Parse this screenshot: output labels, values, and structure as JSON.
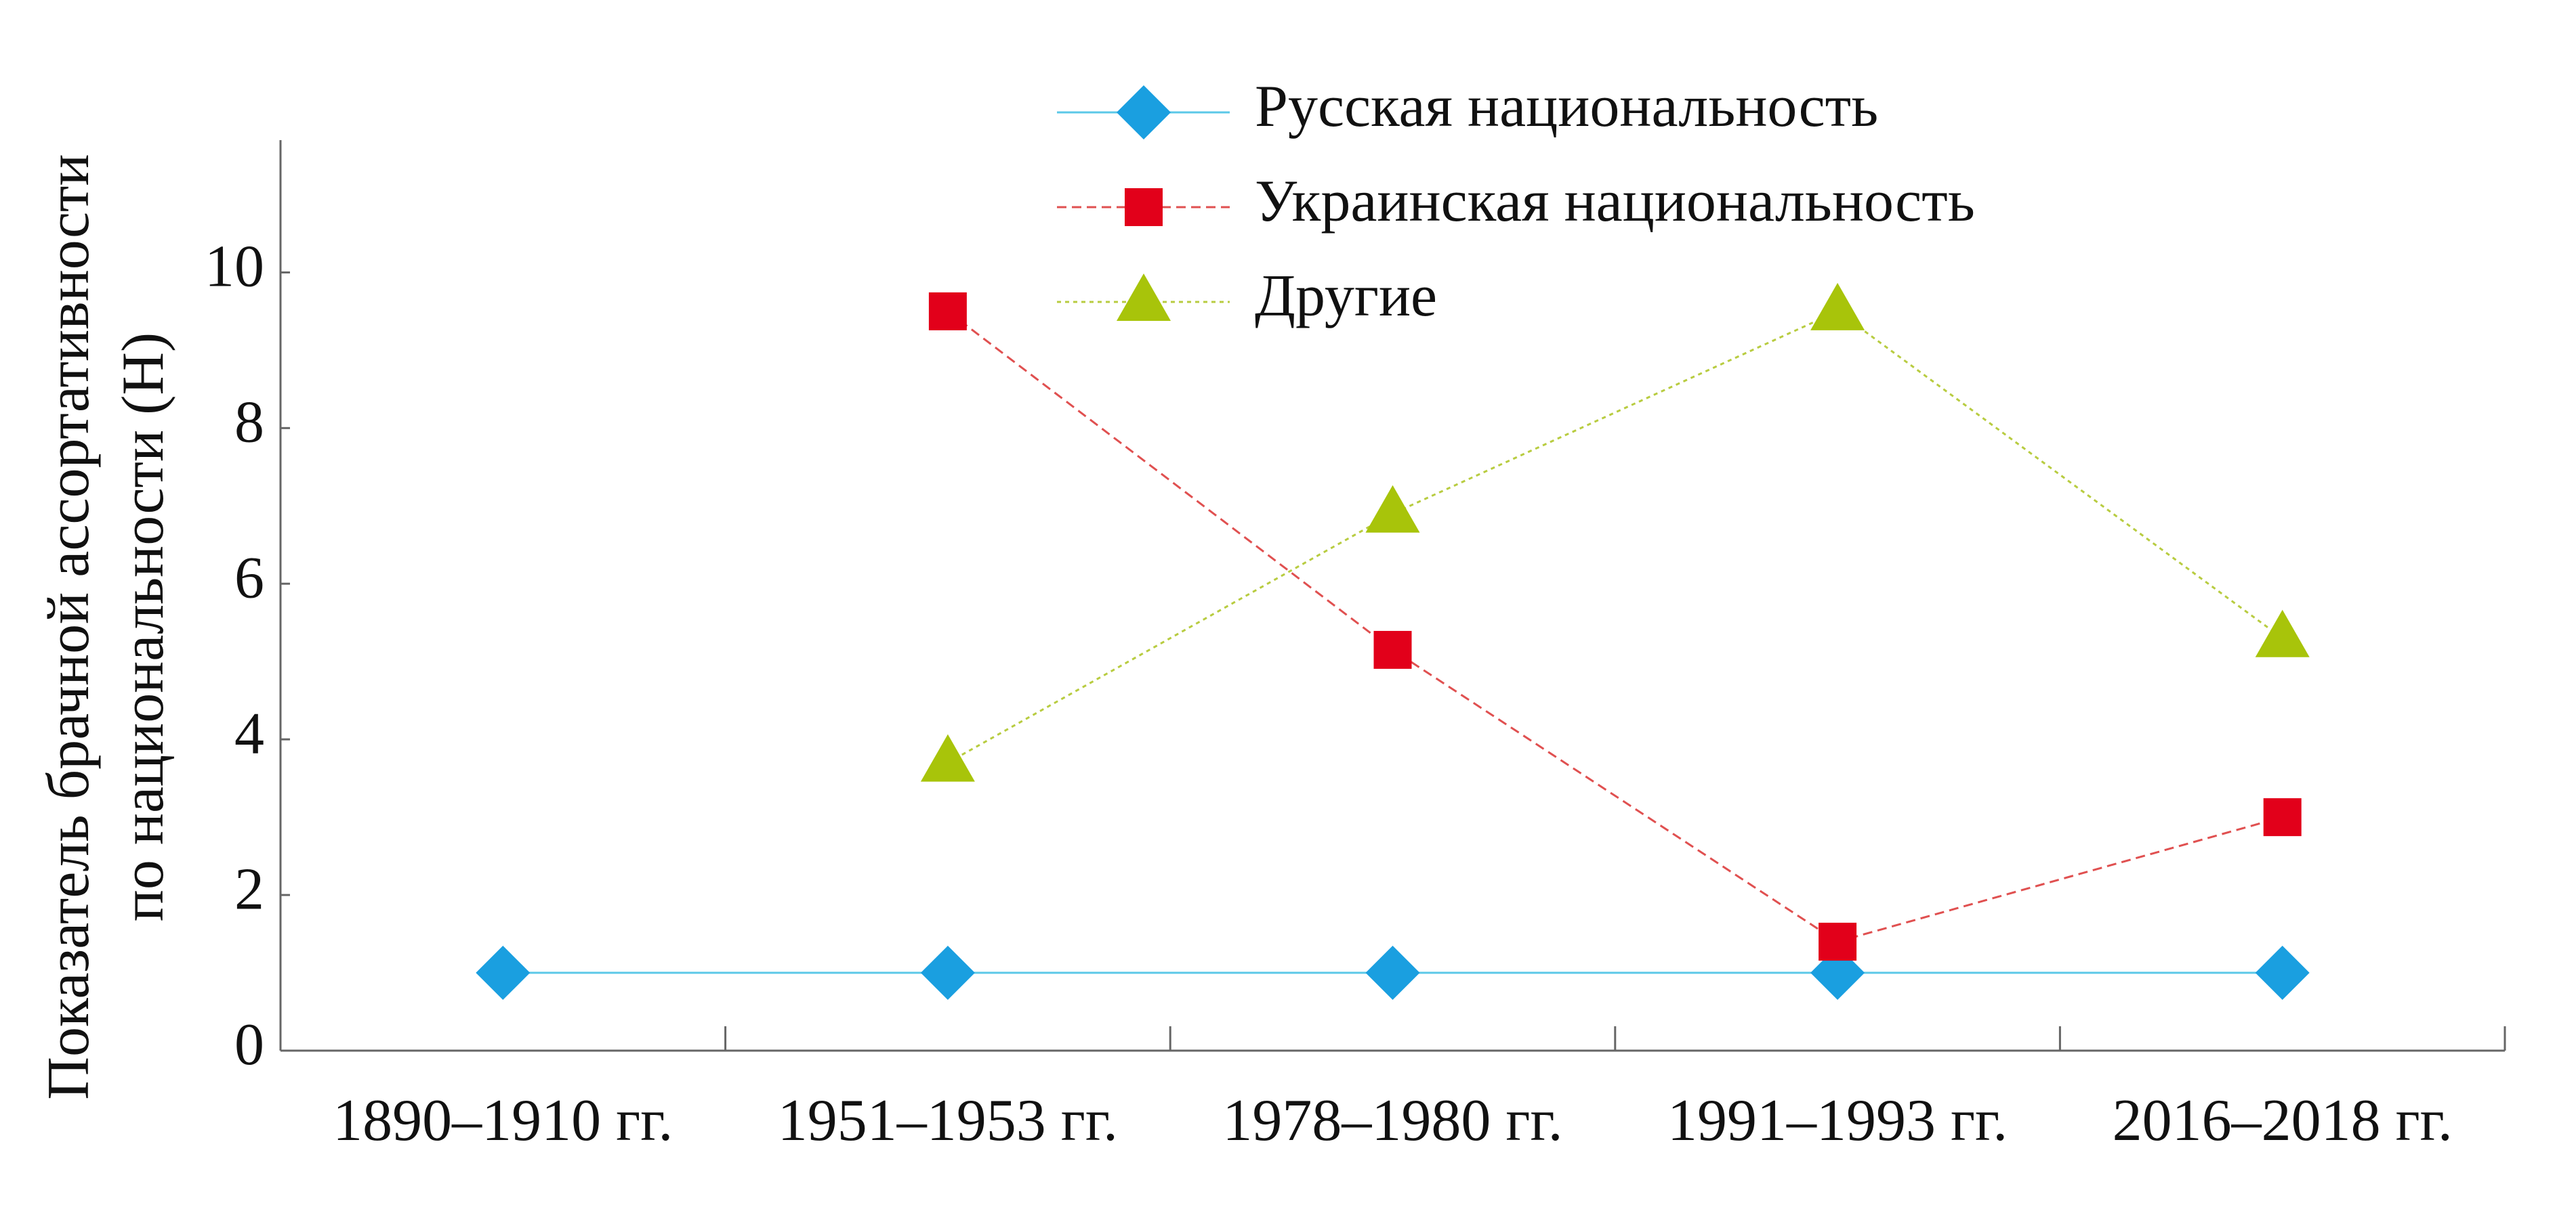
{
  "chart_data": {
    "type": "line",
    "ylabel": [
      "Показатель брачной ассортативности",
      "по национальности (H)"
    ],
    "categories": [
      "1890–1910 гг.",
      "1951–1953 гг.",
      "1978–1980 гг.",
      "1991–1993 гг.",
      "2016–2018 гг."
    ],
    "series": [
      {
        "name": "Русская национальность",
        "color": "#1a9fe0",
        "values": [
          1,
          1,
          1,
          1,
          1
        ]
      },
      {
        "name": "Украинская национальность",
        "color": "#e2001a",
        "values": [
          null,
          9.5,
          5.15,
          1.4,
          3.0
        ]
      },
      {
        "name": "Другие",
        "color": "#a8c40a",
        "values": [
          null,
          3.7,
          6.9,
          9.5,
          5.3
        ]
      }
    ],
    "ylim": [
      0,
      11.7
    ],
    "yticks": [
      0,
      2,
      4,
      6,
      8,
      10
    ],
    "grid": false,
    "legend": "top"
  }
}
